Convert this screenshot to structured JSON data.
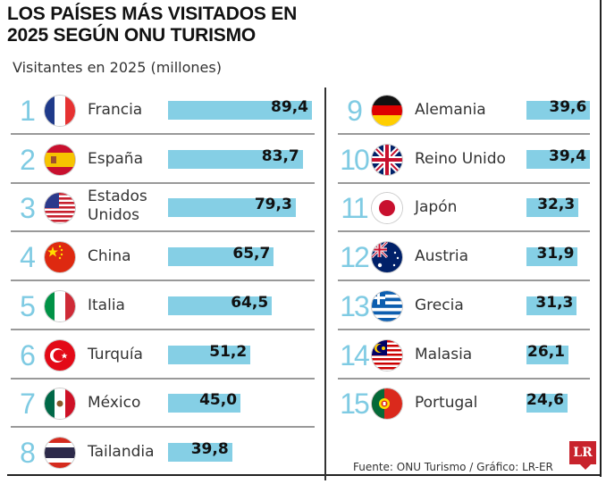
{
  "title_line1": "LOS PAÍSES MÁS VISITADOS EN",
  "title_line2": "2025 SEGÚN ONU TURISMO",
  "subtitle": "Visitantes en 2025 (millones)",
  "source": "Fuente: ONU Turismo / Gráfico: LR-ER",
  "logo": "LR",
  "colors": {
    "bar": "#85cfe5",
    "rank": "#7fcbe3",
    "logo": "#c8232c"
  },
  "chart_data": {
    "type": "bar",
    "title": "LOS PAÍSES MÁS VISITADOS EN 2025 SEGÚN ONU TURISMO",
    "subtitle": "Visitantes en 2025 (millones)",
    "xlabel": "",
    "ylabel": "Visitantes (millones)",
    "orientation": "horizontal",
    "categories": [
      "Francia",
      "España",
      "Estados Unidos",
      "China",
      "Italia",
      "Turquía",
      "México",
      "Tailandia",
      "Alemania",
      "Reino Unido",
      "Japón",
      "Austria",
      "Grecia",
      "Malasia",
      "Portugal"
    ],
    "values": [
      89.4,
      83.7,
      79.3,
      65.7,
      64.5,
      51.2,
      45.0,
      39.8,
      39.6,
      39.4,
      32.3,
      31.9,
      31.3,
      26.1,
      24.6
    ],
    "value_labels": [
      "89,4",
      "83,7",
      "79,3",
      "65,7",
      "64,5",
      "51,2",
      "45,0",
      "39,8",
      "39,6",
      "39,4",
      "32,3",
      "31,9",
      "31,3",
      "26,1",
      "24,6"
    ],
    "ranks": [
      "1",
      "2",
      "3",
      "4",
      "5",
      "6",
      "7",
      "8",
      "9",
      "10",
      "11",
      "12",
      "13",
      "14",
      "15"
    ],
    "flags": [
      "france-flag",
      "spain-flag",
      "usa-flag",
      "china-flag",
      "italy-flag",
      "turkey-flag",
      "mexico-flag",
      "thailand-flag",
      "germany-flag",
      "uk-flag",
      "japan-flag",
      "australia-flag",
      "greece-flag",
      "malaysia-flag",
      "portugal-flag"
    ],
    "name_lines": [
      [
        "Francia"
      ],
      [
        "España"
      ],
      [
        "Estados",
        "Unidos"
      ],
      [
        "China"
      ],
      [
        "Italia"
      ],
      [
        "Turquía"
      ],
      [
        "México"
      ],
      [
        "Tailandia"
      ],
      [
        "Alemania"
      ],
      [
        "Reino Unido"
      ],
      [
        "Japón"
      ],
      [
        "Austria"
      ],
      [
        "Grecia"
      ],
      [
        "Malasia"
      ],
      [
        "Portugal"
      ]
    ],
    "legend": "none",
    "grid": false
  }
}
